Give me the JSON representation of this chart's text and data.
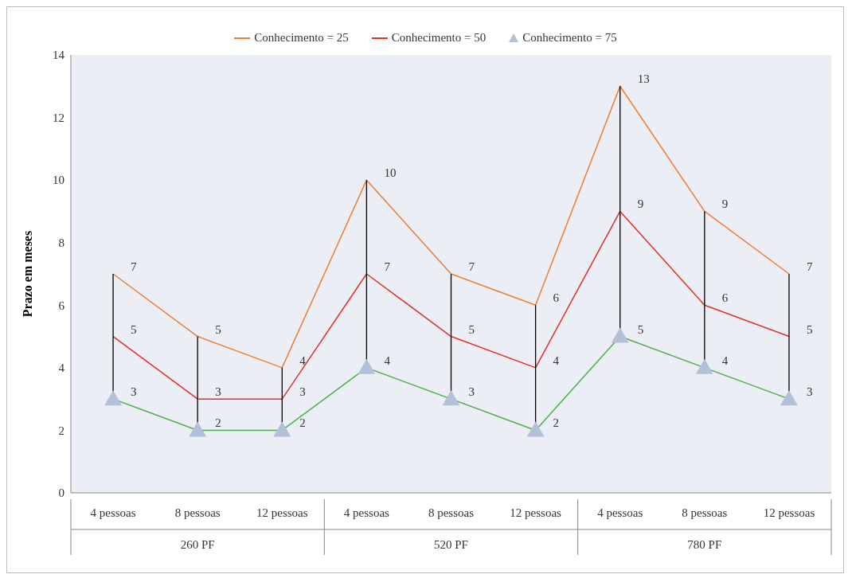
{
  "chart_data": {
    "type": "line",
    "ylabel": "Prazo em meses",
    "categories": [
      "4 pessoas",
      "8 pessoas",
      "12 pessoas",
      "4 pessoas",
      "8 pessoas",
      "12 pessoas",
      "4 pessoas",
      "8 pessoas",
      "12 pessoas"
    ],
    "annotations": [
      "260 PF",
      "520 PF",
      "780 PF"
    ],
    "series": [
      {
        "name": "Conhecimento = 25",
        "color": "#ed7d31",
        "marker": "none",
        "values": [
          7,
          5,
          4,
          10,
          7,
          6,
          13,
          9,
          7
        ]
      },
      {
        "name": "Conhecimento = 50",
        "color": "#e03127",
        "marker": "none",
        "values": [
          5,
          3,
          3,
          7,
          5,
          4,
          9,
          6,
          5
        ]
      },
      {
        "name": "Conhecimento = 75",
        "color": "#4caf4a",
        "marker": "triangle",
        "values": [
          3,
          2,
          2,
          4,
          3,
          2,
          5,
          4,
          3
        ]
      }
    ],
    "ylim": [
      0,
      14
    ],
    "yticks": [
      0,
      2,
      4,
      6,
      8,
      10,
      12,
      14
    ],
    "grid": false,
    "legend": "top",
    "data_labels": true
  }
}
